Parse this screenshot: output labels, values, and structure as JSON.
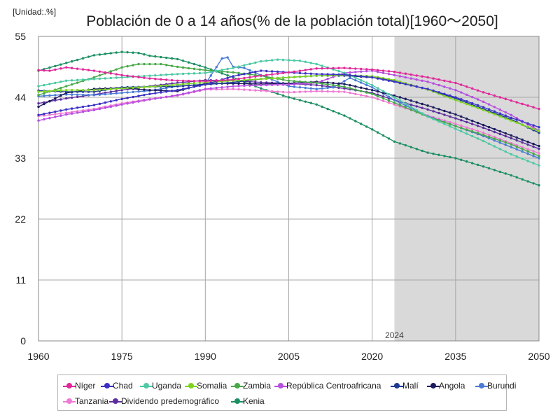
{
  "unit_label": "[Unidad:.%]",
  "title": "Población de 0 a 14 años(% de la población total)[1960～2050]",
  "chart_data": {
    "type": "line",
    "xlim": [
      1960,
      2050
    ],
    "ylim": [
      0,
      55
    ],
    "x_ticks": [
      1960,
      1975,
      1990,
      2005,
      2020,
      2035,
      2050
    ],
    "y_ticks": [
      0,
      11,
      22,
      33,
      44,
      55
    ],
    "forecast_start": 2024,
    "forecast_label": "2024",
    "grid": true,
    "legend_position": "bottom",
    "series": [
      {
        "name": "Níger",
        "color": "#e0289a",
        "points": [
          [
            1960,
            48.9
          ],
          [
            1962,
            48.8
          ],
          [
            1965,
            49.4
          ],
          [
            1970,
            48.8
          ],
          [
            1975,
            48.0
          ],
          [
            1980,
            47.4
          ],
          [
            1985,
            47.0
          ],
          [
            1990,
            46.9
          ],
          [
            1995,
            47.2
          ],
          [
            2000,
            47.9
          ],
          [
            2005,
            48.5
          ],
          [
            2010,
            49.2
          ],
          [
            2015,
            49.3
          ],
          [
            2020,
            49.0
          ],
          [
            2024,
            48.6
          ],
          [
            2030,
            47.6
          ],
          [
            2035,
            46.6
          ],
          [
            2040,
            44.9
          ],
          [
            2045,
            43.4
          ],
          [
            2050,
            41.9
          ]
        ]
      },
      {
        "name": "Chad",
        "color": "#3b32c4",
        "points": [
          [
            1960,
            40.8
          ],
          [
            1965,
            41.8
          ],
          [
            1970,
            42.6
          ],
          [
            1975,
            43.7
          ],
          [
            1980,
            44.6
          ],
          [
            1985,
            45.3
          ],
          [
            1990,
            46.3
          ],
          [
            1995,
            47.8
          ],
          [
            2000,
            48.8
          ],
          [
            2005,
            48.5
          ],
          [
            2010,
            48.2
          ],
          [
            2015,
            48.1
          ],
          [
            2020,
            47.6
          ],
          [
            2024,
            46.8
          ],
          [
            2030,
            45.5
          ],
          [
            2035,
            44.0
          ],
          [
            2040,
            42.2
          ],
          [
            2045,
            40.3
          ],
          [
            2050,
            38.6
          ]
        ]
      },
      {
        "name": "Uganda",
        "color": "#4dc9a4",
        "points": [
          [
            1960,
            46.0
          ],
          [
            1965,
            47.0
          ],
          [
            1970,
            47.3
          ],
          [
            1975,
            47.6
          ],
          [
            1980,
            47.9
          ],
          [
            1985,
            48.2
          ],
          [
            1990,
            48.4
          ],
          [
            1995,
            49.3
          ],
          [
            2000,
            50.5
          ],
          [
            2003,
            50.8
          ],
          [
            2007,
            50.6
          ],
          [
            2010,
            50.0
          ],
          [
            2015,
            48.4
          ],
          [
            2020,
            46.2
          ],
          [
            2024,
            44.0
          ],
          [
            2030,
            40.5
          ],
          [
            2035,
            38.3
          ],
          [
            2040,
            36.1
          ],
          [
            2045,
            33.7
          ],
          [
            2050,
            31.7
          ]
        ]
      },
      {
        "name": "Somalia",
        "color": "#7ed321",
        "points": [
          [
            1960,
            45.0
          ],
          [
            1965,
            45.3
          ],
          [
            1970,
            45.3
          ],
          [
            1975,
            45.6
          ],
          [
            1980,
            45.9
          ],
          [
            1985,
            46.3
          ],
          [
            1990,
            46.7
          ],
          [
            1995,
            47.0
          ],
          [
            2000,
            47.3
          ],
          [
            2005,
            47.6
          ],
          [
            2010,
            47.9
          ],
          [
            2015,
            48.0
          ],
          [
            2020,
            47.8
          ],
          [
            2024,
            47.1
          ],
          [
            2030,
            45.4
          ],
          [
            2035,
            43.5
          ],
          [
            2040,
            41.7
          ],
          [
            2045,
            39.8
          ],
          [
            2050,
            37.9
          ]
        ]
      },
      {
        "name": "Zambia",
        "color": "#47a847",
        "points": [
          [
            1960,
            44.4
          ],
          [
            1965,
            46.0
          ],
          [
            1970,
            47.6
          ],
          [
            1975,
            49.4
          ],
          [
            1978,
            50.0
          ],
          [
            1982,
            50.0
          ],
          [
            1985,
            49.5
          ],
          [
            1990,
            48.9
          ],
          [
            1995,
            48.5
          ],
          [
            2000,
            47.9
          ],
          [
            2005,
            47.0
          ],
          [
            2010,
            46.6
          ],
          [
            2015,
            45.9
          ],
          [
            2020,
            44.6
          ],
          [
            2024,
            43.0
          ],
          [
            2030,
            40.5
          ],
          [
            2035,
            38.8
          ],
          [
            2040,
            37.2
          ],
          [
            2045,
            35.5
          ],
          [
            2050,
            33.4
          ]
        ]
      },
      {
        "name": "República Centroafricana",
        "color": "#b74fe0",
        "points": [
          [
            1960,
            39.8
          ],
          [
            1965,
            40.9
          ],
          [
            1970,
            41.7
          ],
          [
            1975,
            42.7
          ],
          [
            1980,
            43.6
          ],
          [
            1985,
            44.4
          ],
          [
            1990,
            45.5
          ],
          [
            1995,
            46.0
          ],
          [
            2000,
            46.2
          ],
          [
            2005,
            46.3
          ],
          [
            2010,
            46.6
          ],
          [
            2015,
            48.4
          ],
          [
            2020,
            48.8
          ],
          [
            2024,
            48.0
          ],
          [
            2030,
            46.8
          ],
          [
            2035,
            45.3
          ],
          [
            2040,
            43.2
          ],
          [
            2045,
            40.8
          ],
          [
            2050,
            38.0
          ]
        ]
      },
      {
        "name": "Malí",
        "color": "#1f3a93",
        "points": [
          [
            1960,
            45.2
          ],
          [
            1965,
            45.0
          ],
          [
            1970,
            45.0
          ],
          [
            1975,
            45.8
          ],
          [
            1980,
            45.9
          ],
          [
            1985,
            46.0
          ],
          [
            1990,
            46.3
          ],
          [
            1995,
            46.7
          ],
          [
            2000,
            47.3
          ],
          [
            2005,
            47.6
          ],
          [
            2010,
            47.9
          ],
          [
            2015,
            47.9
          ],
          [
            2020,
            47.6
          ],
          [
            2024,
            47.0
          ],
          [
            2030,
            45.4
          ],
          [
            2035,
            43.8
          ],
          [
            2040,
            41.9
          ],
          [
            2045,
            40.0
          ],
          [
            2050,
            37.6
          ]
        ]
      },
      {
        "name": "Angola",
        "color": "#1b1b5e",
        "points": [
          [
            1960,
            42.3
          ],
          [
            1965,
            44.8
          ],
          [
            1970,
            45.5
          ],
          [
            1975,
            45.7
          ],
          [
            1980,
            45.3
          ],
          [
            1985,
            45.1
          ],
          [
            1990,
            46.5
          ],
          [
            1995,
            46.5
          ],
          [
            2000,
            46.4
          ],
          [
            2005,
            46.5
          ],
          [
            2010,
            46.8
          ],
          [
            2015,
            46.4
          ],
          [
            2020,
            45.3
          ],
          [
            2024,
            44.3
          ],
          [
            2030,
            42.5
          ],
          [
            2035,
            40.9
          ],
          [
            2040,
            39.0
          ],
          [
            2045,
            37.1
          ],
          [
            2050,
            35.2
          ]
        ]
      },
      {
        "name": "Burundi",
        "color": "#4a7cd6",
        "points": [
          [
            1960,
            44.2
          ],
          [
            1965,
            44.5
          ],
          [
            1970,
            44.4
          ],
          [
            1975,
            44.8
          ],
          [
            1980,
            45.2
          ],
          [
            1985,
            46.0
          ],
          [
            1990,
            46.4
          ],
          [
            1993,
            51.0
          ],
          [
            1994,
            51.2
          ],
          [
            1995,
            49.5
          ],
          [
            1997,
            49.3
          ],
          [
            2000,
            48.0
          ],
          [
            2005,
            46.0
          ],
          [
            2010,
            45.5
          ],
          [
            2013,
            45.8
          ],
          [
            2016,
            47.5
          ],
          [
            2020,
            45.8
          ],
          [
            2024,
            43.5
          ],
          [
            2030,
            40.6
          ],
          [
            2035,
            38.8
          ],
          [
            2040,
            37.0
          ],
          [
            2045,
            35.0
          ],
          [
            2050,
            33.0
          ]
        ]
      },
      {
        "name": "Tanzania",
        "color": "#f07ad3",
        "points": [
          [
            1960,
            40.6
          ],
          [
            1965,
            41.2
          ],
          [
            1970,
            41.9
          ],
          [
            1975,
            42.9
          ],
          [
            1980,
            43.7
          ],
          [
            1985,
            44.3
          ],
          [
            1990,
            45.4
          ],
          [
            1995,
            45.5
          ],
          [
            2000,
            45.2
          ],
          [
            2005,
            44.9
          ],
          [
            2010,
            45.1
          ],
          [
            2015,
            45.0
          ],
          [
            2020,
            44.0
          ],
          [
            2024,
            42.7
          ],
          [
            2030,
            40.7
          ],
          [
            2035,
            39.2
          ],
          [
            2040,
            37.6
          ],
          [
            2045,
            35.7
          ],
          [
            2050,
            33.9
          ]
        ]
      },
      {
        "name": "Dividendo predemográfico",
        "color": "#5e2ea0",
        "points": [
          [
            1960,
            42.9
          ],
          [
            1965,
            43.8
          ],
          [
            1970,
            44.5
          ],
          [
            1975,
            45.3
          ],
          [
            1980,
            46.0
          ],
          [
            1985,
            46.6
          ],
          [
            1990,
            47.1
          ],
          [
            1995,
            47.0
          ],
          [
            2000,
            46.7
          ],
          [
            2005,
            46.5
          ],
          [
            2010,
            46.2
          ],
          [
            2015,
            45.6
          ],
          [
            2020,
            44.8
          ],
          [
            2024,
            43.5
          ],
          [
            2030,
            41.8
          ],
          [
            2035,
            40.2
          ],
          [
            2040,
            38.5
          ],
          [
            2045,
            36.6
          ],
          [
            2050,
            34.7
          ]
        ]
      },
      {
        "name": "Kenia",
        "color": "#1c8f63",
        "points": [
          [
            1960,
            48.8
          ],
          [
            1965,
            50.2
          ],
          [
            1970,
            51.6
          ],
          [
            1975,
            52.2
          ],
          [
            1978,
            52.0
          ],
          [
            1980,
            51.5
          ],
          [
            1985,
            50.9
          ],
          [
            1990,
            49.4
          ],
          [
            1995,
            47.6
          ],
          [
            2000,
            45.6
          ],
          [
            2005,
            44.0
          ],
          [
            2010,
            42.7
          ],
          [
            2015,
            40.7
          ],
          [
            2020,
            38.2
          ],
          [
            2024,
            36.0
          ],
          [
            2030,
            34.0
          ],
          [
            2035,
            33.0
          ],
          [
            2040,
            31.5
          ],
          [
            2045,
            29.9
          ],
          [
            2050,
            28.1
          ]
        ]
      }
    ]
  }
}
